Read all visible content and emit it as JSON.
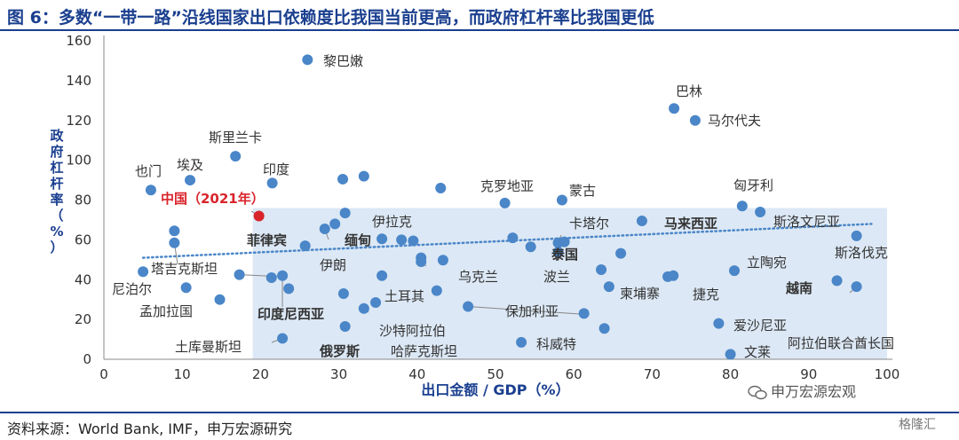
{
  "figure": {
    "title": "图 6：多数“一带一路”沿线国家出口依赖度比我国当前更高，而政府杠杆率比我国更低",
    "source": "资料来源：World Bank, IMF，申万宏源研究",
    "watermark": "申万宏源宏观",
    "brand": "格隆汇"
  },
  "colors": {
    "accent": "#1a3f8f",
    "point": "#4a86c8",
    "highlight": "#d9242b",
    "region": "#dce8f5",
    "trend": "#4a86c8"
  },
  "chart_data": {
    "type": "scatter",
    "xlabel": "出口金额 / GDP（%）",
    "ylabel": "政府杠杆率（%）",
    "xlim": [
      0,
      100
    ],
    "ylim": [
      0,
      160
    ],
    "xticks": [
      0,
      10,
      20,
      30,
      40,
      50,
      60,
      70,
      80,
      90,
      100
    ],
    "yticks": [
      0,
      20,
      40,
      60,
      80,
      100,
      120,
      140,
      160
    ],
    "grid": false,
    "highlight_region": {
      "x": [
        19,
        100
      ],
      "y": [
        0,
        76
      ]
    },
    "trendline": {
      "x": [
        5,
        98
      ],
      "y": [
        51,
        68
      ]
    },
    "points": [
      {
        "x": 26.0,
        "y": 150.5,
        "label": "黎巴嫩"
      },
      {
        "x": 72.8,
        "y": 126.0,
        "label": "巴林"
      },
      {
        "x": 75.5,
        "y": 120.0,
        "label": "马尔代夫"
      },
      {
        "x": 16.8,
        "y": 102.0,
        "label": "斯里兰卡"
      },
      {
        "x": 6.0,
        "y": 85.0,
        "label": "也门"
      },
      {
        "x": 11.0,
        "y": 90.0,
        "label": "埃及"
      },
      {
        "x": 21.5,
        "y": 88.5,
        "label": "印度"
      },
      {
        "x": 30.5,
        "y": 90.5,
        "label": ""
      },
      {
        "x": 33.2,
        "y": 92.0,
        "label": ""
      },
      {
        "x": 43.0,
        "y": 86.0,
        "label": ""
      },
      {
        "x": 51.2,
        "y": 78.5,
        "label": "克罗地亚"
      },
      {
        "x": 58.5,
        "y": 80.0,
        "label": "蒙古"
      },
      {
        "x": 81.5,
        "y": 77.0,
        "label": "匈牙利"
      },
      {
        "x": 83.8,
        "y": 74.0,
        "label": "斯洛文尼亚"
      },
      {
        "x": 19.8,
        "y": 72.0,
        "label": "中国（2021年）",
        "highlight": true
      },
      {
        "x": 30.8,
        "y": 73.5,
        "label": ""
      },
      {
        "x": 29.5,
        "y": 68.0,
        "label": ""
      },
      {
        "x": 28.2,
        "y": 65.5,
        "label": "缅甸",
        "bold": true
      },
      {
        "x": 25.7,
        "y": 57.0,
        "label": "菲律宾",
        "bold": true
      },
      {
        "x": 35.5,
        "y": 60.5,
        "label": "伊拉克"
      },
      {
        "x": 38.0,
        "y": 60.0,
        "label": ""
      },
      {
        "x": 39.5,
        "y": 59.5,
        "label": ""
      },
      {
        "x": 52.2,
        "y": 61.0,
        "label": ""
      },
      {
        "x": 54.5,
        "y": 56.5,
        "label": ""
      },
      {
        "x": 58.0,
        "y": 58.5,
        "label": "卡塔尔"
      },
      {
        "x": 58.8,
        "y": 59.0,
        "label": ""
      },
      {
        "x": 68.7,
        "y": 69.5,
        "label": "马来西亚",
        "bold": true
      },
      {
        "x": 96.1,
        "y": 62.0,
        "label": "斯洛伐克"
      },
      {
        "x": 58.0,
        "y": 53.8,
        "label": "泰国",
        "bold": true
      },
      {
        "x": 66.0,
        "y": 53.2,
        "label": ""
      },
      {
        "x": 40.5,
        "y": 51.0,
        "label": ""
      },
      {
        "x": 40.5,
        "y": 49.0,
        "label": "乌克兰"
      },
      {
        "x": 43.3,
        "y": 49.8,
        "label": ""
      },
      {
        "x": 5.0,
        "y": 44.0,
        "label": "尼泊尔"
      },
      {
        "x": 9.0,
        "y": 64.5,
        "label": ""
      },
      {
        "x": 9.0,
        "y": 58.5,
        "label": "塔吉克斯坦"
      },
      {
        "x": 17.3,
        "y": 42.5,
        "label": "伊朗"
      },
      {
        "x": 21.4,
        "y": 41.0,
        "label": ""
      },
      {
        "x": 22.8,
        "y": 42.0,
        "label": "印度尼西亚",
        "bold": true
      },
      {
        "x": 23.6,
        "y": 35.5,
        "label": ""
      },
      {
        "x": 10.5,
        "y": 36.0,
        "label": "孟加拉国"
      },
      {
        "x": 14.8,
        "y": 30.0,
        "label": ""
      },
      {
        "x": 35.5,
        "y": 42.0,
        "label": "土耳其"
      },
      {
        "x": 42.5,
        "y": 34.5,
        "label": ""
      },
      {
        "x": 30.6,
        "y": 33.0,
        "label": ""
      },
      {
        "x": 34.7,
        "y": 28.5,
        "label": "沙特阿拉伯"
      },
      {
        "x": 33.2,
        "y": 25.5,
        "label": "哈萨克斯坦"
      },
      {
        "x": 30.8,
        "y": 16.5,
        "label": "俄罗斯",
        "bold": true
      },
      {
        "x": 22.8,
        "y": 10.5,
        "label": "土库曼斯坦"
      },
      {
        "x": 46.5,
        "y": 26.5,
        "label": "保加利亚"
      },
      {
        "x": 61.3,
        "y": 23.0,
        "label": ""
      },
      {
        "x": 63.5,
        "y": 45.0,
        "label": "波兰"
      },
      {
        "x": 64.5,
        "y": 36.5,
        "label": "柬埔寨"
      },
      {
        "x": 72.0,
        "y": 41.5,
        "label": ""
      },
      {
        "x": 72.7,
        "y": 42.0,
        "label": "捷克"
      },
      {
        "x": 80.5,
        "y": 44.5,
        "label": "立陶宛"
      },
      {
        "x": 93.6,
        "y": 39.5,
        "label": "越南",
        "bold": true
      },
      {
        "x": 96.1,
        "y": 36.5,
        "label": "阿拉伯联合酋长国"
      },
      {
        "x": 78.5,
        "y": 18.0,
        "label": "爱沙尼亚"
      },
      {
        "x": 63.9,
        "y": 15.5,
        "label": ""
      },
      {
        "x": 53.3,
        "y": 8.5,
        "label": "科威特"
      },
      {
        "x": 80.0,
        "y": 2.5,
        "label": "文莱"
      }
    ]
  }
}
